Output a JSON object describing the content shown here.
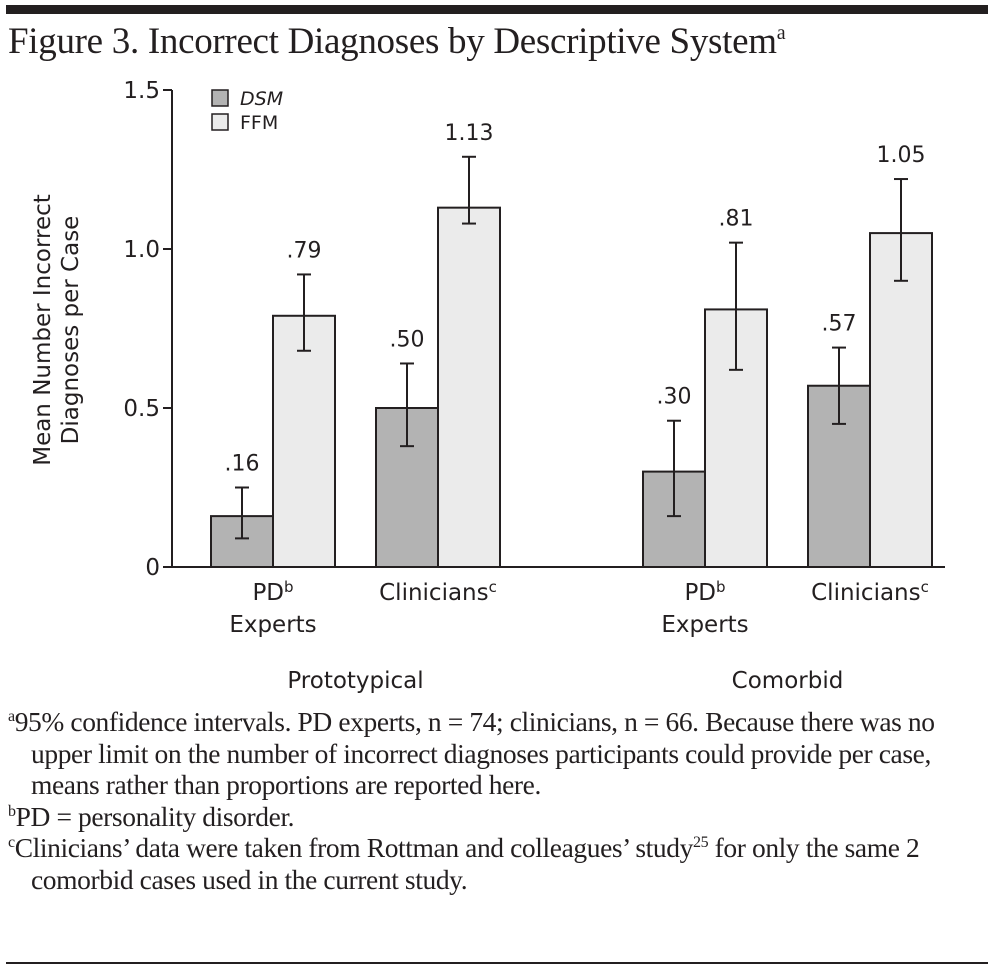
{
  "figure": {
    "title": "Figure 3. Incorrect Diagnoses by Descriptive System",
    "title_sup": "a"
  },
  "chart_data": {
    "type": "bar",
    "title": "Figure 3. Incorrect Diagnoses by Descriptive System",
    "ylabel_lines": [
      "Mean Number Incorrect",
      "Diagnoses per Case"
    ],
    "ylabel": "Mean Number Incorrect Diagnoses per Case",
    "ylim": [
      0,
      1.5
    ],
    "yticks": [
      0,
      0.5,
      1.0,
      1.5
    ],
    "ytick_labels": [
      "0",
      "0.5",
      "1.0",
      "1.5"
    ],
    "grid": false,
    "legend_position": "top-left",
    "groups": [
      {
        "label": "Prototypical",
        "categories": [
          {
            "label": "PD",
            "sup": "b",
            "label2": "Experts"
          },
          {
            "label": "Clinicians",
            "sup": "c",
            "label2": ""
          }
        ]
      },
      {
        "label": "Comorbid",
        "categories": [
          {
            "label": "PD",
            "sup": "b",
            "label2": "Experts"
          },
          {
            "label": "Clinicians",
            "sup": "c",
            "label2": ""
          }
        ]
      }
    ],
    "categories": [
      "Prototypical PD Experts",
      "Prototypical Clinicians",
      "Comorbid PD Experts",
      "Comorbid Clinicians"
    ],
    "series": [
      {
        "name": "DSM",
        "italic": true,
        "color": "#b3b3b3",
        "values": [
          0.16,
          0.5,
          0.3,
          0.57
        ],
        "value_labels": [
          ".16",
          ".50",
          ".30",
          ".57"
        ],
        "ci_low": [
          0.09,
          0.38,
          0.16,
          0.45
        ],
        "ci_high": [
          0.25,
          0.64,
          0.46,
          0.69
        ]
      },
      {
        "name": "FFM",
        "italic": false,
        "color": "#ebebeb",
        "values": [
          0.79,
          1.13,
          0.81,
          1.05
        ],
        "value_labels": [
          ".79",
          "1.13",
          ".81",
          "1.05"
        ],
        "ci_low": [
          0.68,
          1.08,
          0.62,
          0.9
        ],
        "ci_high": [
          0.92,
          1.29,
          1.02,
          1.22
        ]
      }
    ]
  },
  "footnotes": [
    {
      "sup": "a",
      "text": "95% confidence intervals. PD experts, n = 74; clinicians, n = 66. Because there was no upper limit on the number of incorrect diagnoses participants could provide per case, means rather than proportions are reported here."
    },
    {
      "sup": "b",
      "text": "PD = personality disorder."
    },
    {
      "sup": "c",
      "text": "Clinicians’ data were taken from Rottman and colleagues’ study",
      "ref": "25",
      "text2": " for only the same 2 comorbid cases used in the current study."
    }
  ]
}
